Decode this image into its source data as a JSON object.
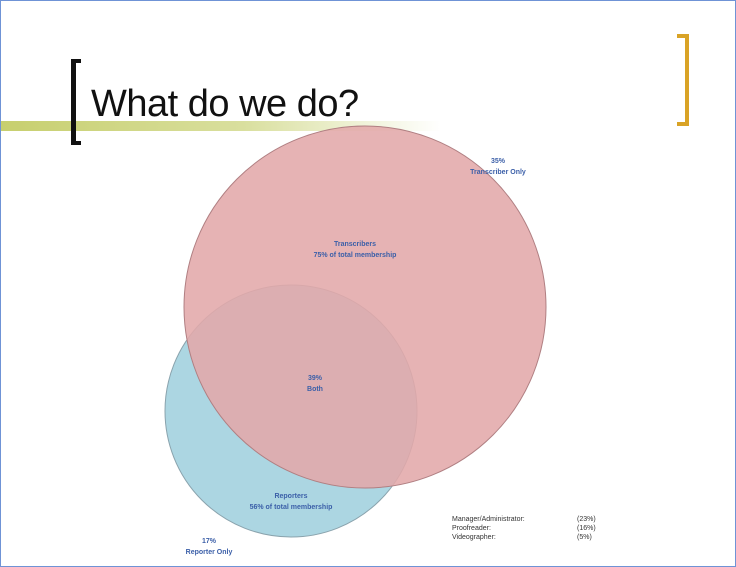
{
  "slide": {
    "title": "What do we do?"
  },
  "diagram": {
    "transcribers": {
      "title": "Transcribers",
      "subtitle": "75% of total membership"
    },
    "reporters": {
      "title": "Reporters",
      "subtitle": "56% of total membership"
    },
    "both": {
      "pct": "39%",
      "label": "Both"
    },
    "transcriber_only": {
      "pct": "35%",
      "label": "Transcriber Only"
    },
    "reporter_only": {
      "pct": "17%",
      "label": "Reporter Only"
    }
  },
  "legend": [
    {
      "name": "Manager/Administrator:",
      "value": "(23%)"
    },
    {
      "name": "Proofreader:",
      "value": "(16%)"
    },
    {
      "name": "Videographer:",
      "value": "(5%)"
    }
  ],
  "colors": {
    "transcribers_fill": "#e3a8aa",
    "reporters_fill": "#acd6e2",
    "label_text": "#3b5fa8",
    "accent_gold": "#d9a326",
    "accent_green": "#c7cf6e"
  }
}
